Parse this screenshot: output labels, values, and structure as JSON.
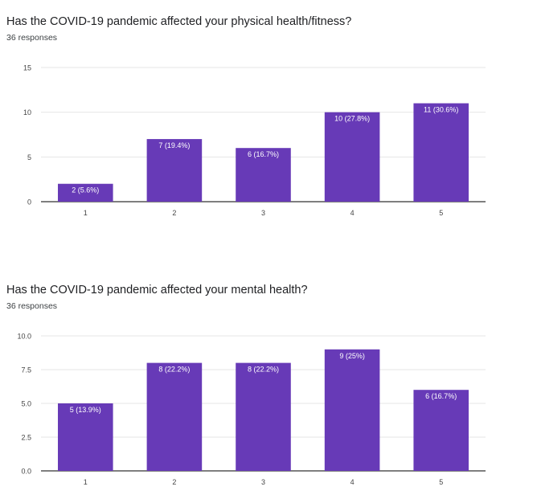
{
  "charts": [
    {
      "question": "Has the COVID-19 pandemic affected your physical health/fitness?",
      "responses": "36 responses"
    },
    {
      "question": "Has the COVID-19 pandemic affected your mental health?",
      "responses": "36 responses"
    }
  ],
  "chart_data": [
    {
      "type": "bar",
      "title": "Has the COVID-19 pandemic affected your physical health/fitness?",
      "subtitle": "36 responses",
      "categories": [
        "1",
        "2",
        "3",
        "4",
        "5"
      ],
      "values": [
        2,
        7,
        6,
        10,
        11
      ],
      "data_labels": [
        "2 (5.6%)",
        "7 (19.4%)",
        "6 (16.7%)",
        "10 (27.8%)",
        "11 (30.6%)"
      ],
      "ylim": [
        0,
        15
      ],
      "yticks": [
        "0",
        "5",
        "10",
        "15"
      ],
      "grid": true,
      "bar_color": "#673ab7"
    },
    {
      "type": "bar",
      "title": "Has the COVID-19 pandemic affected your mental health?",
      "subtitle": "36 responses",
      "categories": [
        "1",
        "2",
        "3",
        "4",
        "5"
      ],
      "values": [
        5,
        8,
        8,
        9,
        6
      ],
      "data_labels": [
        "5 (13.9%)",
        "8 (22.2%)",
        "8 (22.2%)",
        "9 (25%)",
        "6 (16.7%)"
      ],
      "ylim": [
        0,
        10
      ],
      "yticks": [
        "0.0",
        "2.5",
        "5.0",
        "7.5",
        "10.0"
      ],
      "grid": true,
      "bar_color": "#673ab7"
    }
  ]
}
